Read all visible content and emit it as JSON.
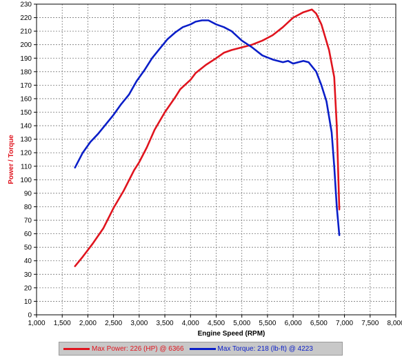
{
  "chart_data": {
    "type": "line",
    "title": "",
    "xlabel": "Engine Speed (RPM)",
    "ylabel": "Power / Torque",
    "xlim": [
      1000,
      8000
    ],
    "ylim": [
      0,
      230
    ],
    "x_ticks": [
      1000,
      1500,
      2000,
      2500,
      3000,
      3500,
      4000,
      4500,
      5000,
      5500,
      6000,
      6500,
      7000,
      7500,
      8000
    ],
    "x_tick_labels": [
      "1,000",
      "1,500",
      "2,000",
      "2,500",
      "3,000",
      "3,500",
      "4,000",
      "4,500",
      "5,000",
      "5,500",
      "6,000",
      "6,500",
      "7,000",
      "7,500",
      "8,000"
    ],
    "y_ticks": [
      0,
      10,
      20,
      30,
      40,
      50,
      60,
      70,
      80,
      90,
      100,
      110,
      120,
      130,
      140,
      150,
      160,
      170,
      180,
      190,
      200,
      210,
      220,
      230
    ],
    "grid": true,
    "legend_position": "bottom",
    "series": [
      {
        "name": "Max Power: 226 (HP) @ 6366",
        "color": "#e0141e",
        "x": [
          1750,
          1900,
          2100,
          2300,
          2500,
          2700,
          2900,
          3000,
          3150,
          3300,
          3500,
          3700,
          3800,
          4000,
          4100,
          4300,
          4500,
          4650,
          4800,
          5000,
          5200,
          5400,
          5600,
          5800,
          6000,
          6200,
          6366,
          6450,
          6550,
          6700,
          6800,
          6850,
          6900
        ],
        "y": [
          36,
          43,
          53,
          64,
          79,
          92,
          107,
          113,
          124,
          137,
          150,
          161,
          167,
          174,
          179,
          185,
          190,
          194,
          196,
          198,
          200,
          203,
          207,
          213,
          220,
          224,
          226,
          223,
          215,
          196,
          176,
          140,
          78
        ]
      },
      {
        "name": "Max Torque: 218 (lb-ft) @ 4223",
        "color": "#0a1ec8",
        "x": [
          1750,
          1900,
          2050,
          2200,
          2350,
          2500,
          2650,
          2800,
          2950,
          3100,
          3250,
          3400,
          3550,
          3700,
          3850,
          4000,
          4100,
          4223,
          4350,
          4500,
          4650,
          4800,
          5000,
          5200,
          5400,
          5600,
          5800,
          5900,
          6000,
          6100,
          6200,
          6300,
          6450,
          6550,
          6650,
          6750,
          6800,
          6850,
          6900
        ],
        "y": [
          109,
          120,
          128,
          134,
          141,
          148,
          156,
          163,
          173,
          181,
          190,
          197,
          204,
          209,
          213,
          215,
          217,
          218,
          218,
          215,
          213,
          210,
          203,
          198,
          192,
          189,
          187,
          188,
          186,
          187,
          188,
          187,
          180,
          170,
          158,
          135,
          110,
          80,
          59
        ]
      }
    ]
  }
}
